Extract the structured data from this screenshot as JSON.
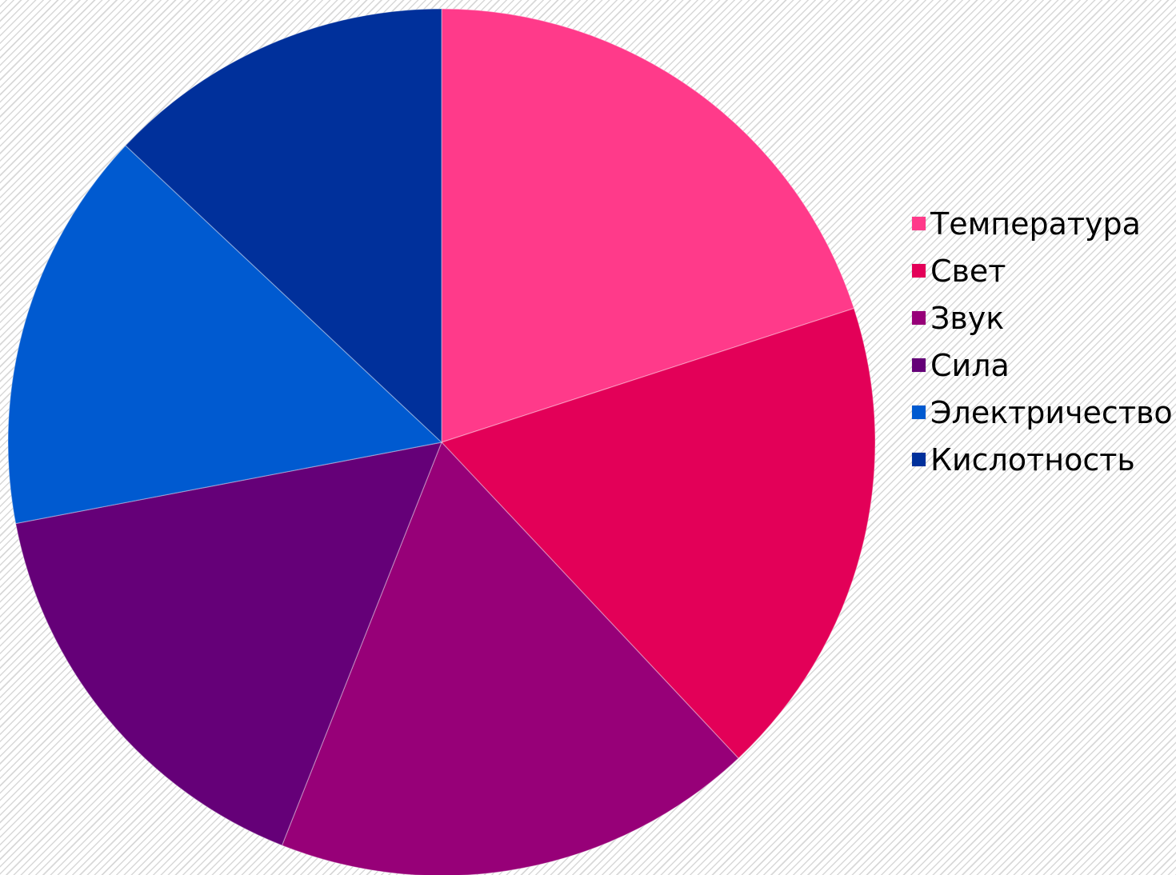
{
  "chart_data": {
    "type": "pie",
    "start_angle_deg": 0,
    "direction": "clockwise",
    "categories": [
      "Температура",
      "Свет",
      "Звук",
      "Сила",
      "Электричество",
      "Кислотность"
    ],
    "values": [
      20,
      18,
      18,
      16,
      15,
      13
    ],
    "colors": [
      "#ff3a8a",
      "#e30058",
      "#970078",
      "#650078",
      "#005ad0",
      "#00309b"
    ],
    "legend": {
      "position": "right",
      "entries": [
        "Температура",
        "Свет",
        "Звук",
        "Сила",
        "Электричество",
        "Кислотность"
      ]
    }
  }
}
